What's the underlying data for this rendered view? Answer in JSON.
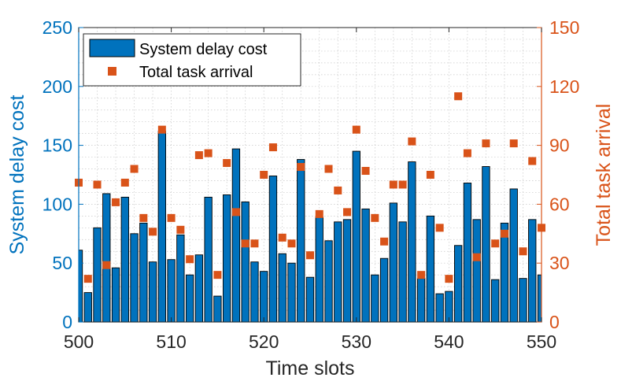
{
  "chart_data": {
    "type": "bar",
    "xlabel": "Time slots",
    "ylabel_left": "System delay cost",
    "ylabel_right": "Total task arrival",
    "xlim": [
      500,
      550
    ],
    "ylim_left": [
      0,
      250
    ],
    "ylim_right": [
      0,
      150
    ],
    "xticks": [
      500,
      510,
      520,
      530,
      540,
      550
    ],
    "yticks_left": [
      0,
      50,
      100,
      150,
      200,
      250
    ],
    "yticks_right": [
      0,
      30,
      60,
      90,
      120,
      150
    ],
    "grid": true,
    "legend_position": "top-left",
    "colors": {
      "left_axis": "#0072BD",
      "right_axis": "#D95319",
      "bar_fill": "#0072BD",
      "bar_edge": "#000000",
      "marker": "#D95319"
    },
    "series": [
      {
        "name": "System delay cost",
        "kind": "bar",
        "axis": "left",
        "x": [
          500,
          501,
          502,
          503,
          504,
          505,
          506,
          507,
          508,
          509,
          510,
          511,
          512,
          513,
          514,
          515,
          516,
          517,
          518,
          519,
          520,
          521,
          522,
          523,
          524,
          525,
          526,
          527,
          528,
          529,
          530,
          531,
          532,
          533,
          534,
          535,
          536,
          537,
          538,
          539,
          540,
          541,
          542,
          543,
          544,
          545,
          546,
          547,
          548,
          549,
          550
        ],
        "values": [
          61,
          25,
          80,
          109,
          46,
          106,
          75,
          84,
          51,
          162,
          53,
          74,
          40,
          57,
          106,
          22,
          108,
          147,
          102,
          51,
          43,
          124,
          58,
          50,
          138,
          38,
          89,
          69,
          85,
          87,
          145,
          96,
          40,
          54,
          101,
          85,
          136,
          37,
          90,
          24,
          26,
          65,
          118,
          87,
          132,
          36,
          84,
          113,
          37,
          87,
          40
        ]
      },
      {
        "name": "Total task arrival",
        "kind": "marker",
        "axis": "right",
        "x": [
          500,
          501,
          502,
          503,
          504,
          505,
          506,
          507,
          508,
          509,
          510,
          511,
          512,
          513,
          514,
          515,
          516,
          517,
          518,
          519,
          520,
          521,
          522,
          523,
          524,
          525,
          526,
          527,
          528,
          529,
          530,
          531,
          532,
          533,
          534,
          535,
          536,
          537,
          538,
          539,
          540,
          541,
          542,
          543,
          544,
          545,
          546,
          547,
          548,
          549,
          550
        ],
        "values": [
          71,
          22,
          70,
          29,
          61,
          71,
          78,
          53,
          46,
          98,
          53,
          47,
          32,
          85,
          86,
          24,
          81,
          56,
          40,
          40,
          75,
          89,
          43,
          40,
          79,
          34,
          55,
          78,
          67,
          56,
          98,
          77,
          53,
          41,
          70,
          70,
          92,
          24,
          75,
          48,
          22,
          115,
          86,
          33,
          91,
          40,
          45,
          91,
          36,
          82,
          48
        ]
      }
    ]
  }
}
